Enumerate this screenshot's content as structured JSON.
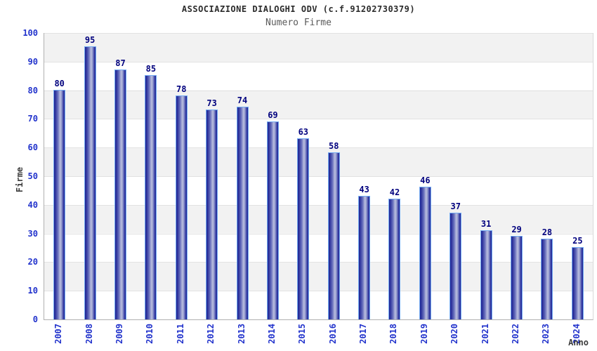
{
  "header": {
    "title": "ASSOCIAZIONE DIALOGHI ODV (c.f.91202730379)",
    "subtitle": "Numero Firme"
  },
  "chart_data": {
    "type": "bar",
    "title": "ASSOCIAZIONE DIALOGHI ODV (c.f.91202730379)",
    "subtitle": "Numero Firme",
    "xlabel": "Anno",
    "ylabel": "Firme",
    "categories": [
      "2007",
      "2008",
      "2009",
      "2010",
      "2011",
      "2012",
      "2013",
      "2014",
      "2015",
      "2016",
      "2017",
      "2018",
      "2019",
      "2020",
      "2021",
      "2022",
      "2023",
      "2024"
    ],
    "values": [
      80,
      95,
      87,
      85,
      78,
      73,
      74,
      69,
      63,
      58,
      43,
      42,
      46,
      37,
      31,
      29,
      28,
      25
    ],
    "ylim": [
      0,
      100
    ],
    "ytick_step": 10,
    "grid": true,
    "band_fill": true,
    "legend": "none",
    "colors": {
      "bar_dark": "#1f2593",
      "bar_mid": "#666dbb",
      "bar_light": "#b9bedf",
      "bar_border": "#74abf2",
      "value_label": "#00007e",
      "tick_label": "#2233cc",
      "band": "#f2f2f2",
      "gridline": "#e2e2e2",
      "axis_line": "#b0b0b0",
      "title_text": "#2b2b2b",
      "subtitle_text": "#5a5a5a",
      "axis_title_text": "#3c3c3c"
    }
  }
}
